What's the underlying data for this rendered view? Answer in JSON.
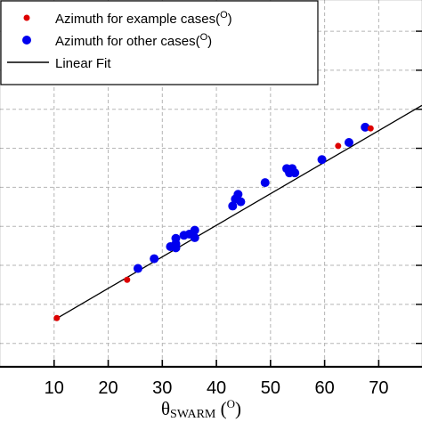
{
  "chart_data": {
    "type": "scatter",
    "title": "",
    "xlabel": "θSWARM (O)",
    "xlabel_parts": {
      "theta": "θ",
      "sub": "SWARM",
      "unit_open": " (",
      "unit_sup": "O",
      "unit_close": ")"
    },
    "ylabel": "",
    "xlim": [
      0,
      78
    ],
    "ylim": [
      -6,
      88
    ],
    "x_ticks": [
      10,
      20,
      30,
      40,
      50,
      60,
      70
    ],
    "x_tick_labels": [
      "10",
      "20",
      "30",
      "40",
      "50",
      "60",
      "70"
    ],
    "y_gridlines": [
      0,
      10,
      20,
      30,
      40,
      50,
      60,
      70,
      80
    ],
    "grid": true,
    "legend": {
      "position": "top-left",
      "entries": [
        {
          "key": "example",
          "label": "Azimuth for example cases(",
          "sup": "O",
          "close": ")"
        },
        {
          "key": "other",
          "label": "Azimuth for other cases(",
          "sup": "O",
          "close": ")"
        },
        {
          "key": "fit",
          "label": "Linear Fit",
          "sup": "",
          "close": ""
        }
      ]
    },
    "series": [
      {
        "name": "Azimuth for example cases(O)",
        "key": "example",
        "color": "#dd0000",
        "marker": "small-circle",
        "points": [
          [
            10.5,
            6.5
          ],
          [
            23.5,
            16.3
          ],
          [
            62.5,
            50.6
          ],
          [
            68.5,
            55.1
          ]
        ]
      },
      {
        "name": "Azimuth for other cases(O)",
        "key": "other",
        "color": "#0000ee",
        "marker": "circle",
        "points": [
          [
            25.5,
            19.2
          ],
          [
            28.5,
            21.7
          ],
          [
            31.5,
            24.8
          ],
          [
            32.5,
            24.5
          ],
          [
            32.5,
            25.5
          ],
          [
            32.5,
            26.9
          ],
          [
            34,
            27.7
          ],
          [
            35,
            28.0
          ],
          [
            36,
            27.1
          ],
          [
            36,
            29.0
          ],
          [
            43,
            35.2
          ],
          [
            43.5,
            37.0
          ],
          [
            44,
            38.2
          ],
          [
            44.5,
            36.3
          ],
          [
            49,
            41.2
          ],
          [
            53,
            44.8
          ],
          [
            53.5,
            43.7
          ],
          [
            54,
            44.8
          ],
          [
            54.5,
            43.7
          ],
          [
            59.5,
            47.1
          ],
          [
            64.5,
            51.5
          ],
          [
            67.5,
            55.4
          ]
        ]
      },
      {
        "name": "Linear Fit",
        "key": "fit",
        "color": "#000000",
        "type": "line",
        "points": [
          [
            10.0,
            6.0
          ],
          [
            78.0,
            61.0
          ]
        ]
      }
    ]
  }
}
